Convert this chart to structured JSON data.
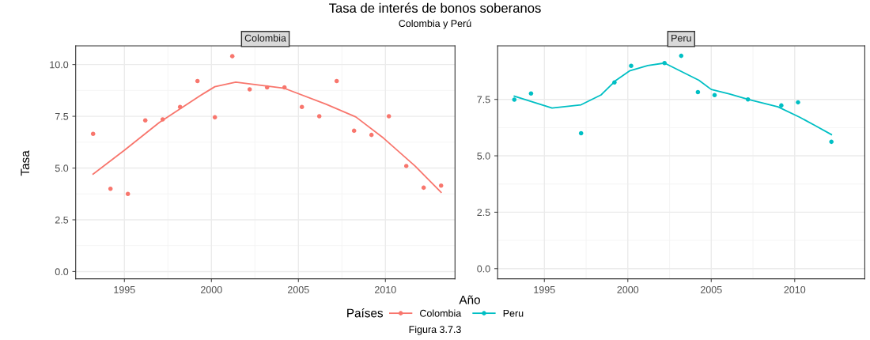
{
  "chart_data": [
    {
      "type": "scatter",
      "title": "Colombia",
      "xlabel": "Año",
      "ylabel": "Tasa",
      "legend_title": "Países",
      "legend": "bottom",
      "grid": true,
      "marker": "circle",
      "annotations": [
        "Tasa de interés de bonos soberanos",
        "Colombia y Perú",
        "Figura 3.7.3"
      ],
      "xlim": [
        1992.2,
        2014.0
      ],
      "xticks": [
        1995,
        2000,
        2005,
        2010
      ],
      "ylim": [
        -0.35,
        10.9
      ],
      "yticks": [
        {
          "value": 0,
          "label": "0.0"
        },
        {
          "value": 2.5,
          "label": "2.5"
        },
        {
          "value": 5,
          "label": "5.0"
        },
        {
          "value": 7.5,
          "label": "7.5"
        },
        {
          "value": 10,
          "label": "10.0"
        }
      ],
      "series": [
        {
          "name": "Colombia",
          "color": "#f8766d",
          "x": [
            1993.2,
            1994.2,
            1995.2,
            1996.2,
            1997.2,
            1998.2,
            1999.2,
            2000.2,
            2001.2,
            2002.2,
            2003.2,
            2004.2,
            2005.2,
            2006.2,
            2007.2,
            2008.2,
            2009.2,
            2010.2,
            2011.2,
            2012.2,
            2013.2
          ],
          "values": [
            6.65,
            4.0,
            3.75,
            7.3,
            7.35,
            7.95,
            9.2,
            7.45,
            10.4,
            8.8,
            8.9,
            8.9,
            7.95,
            7.5,
            9.2,
            6.8,
            6.6,
            7.5,
            5.1,
            4.05,
            4.15
          ]
        },
        {
          "type": "line",
          "color": "#f8766d",
          "line_style": "solid",
          "marker": "none",
          "x": [
            1993.2,
            1995.0,
            1997.0,
            1999.3,
            2000.2,
            2001.4,
            2004.2,
            2006.6,
            2008.3,
            2009.9,
            2011.7,
            2013.2
          ],
          "values": [
            4.71,
            5.86,
            7.2,
            8.47,
            8.93,
            9.15,
            8.85,
            8.08,
            7.47,
            6.44,
            5.1,
            3.83
          ]
        }
      ]
    },
    {
      "type": "scatter",
      "title": "Peru",
      "grid": true,
      "marker": "circle",
      "xlim": [
        1992.2,
        2014.2
      ],
      "xticks": [
        1995,
        2000,
        2005,
        2010
      ],
      "ylim": [
        -0.45,
        9.87
      ],
      "yticks": [
        {
          "value": 0,
          "label": "0.0"
        },
        {
          "value": 2.5,
          "label": "2.5"
        },
        {
          "value": 5,
          "label": "5.0"
        },
        {
          "value": 7.5,
          "label": "7.5"
        }
      ],
      "series": [
        {
          "name": "Peru",
          "color": "#00bfc4",
          "x": [
            1993.2,
            1994.2,
            1997.2,
            1999.2,
            2000.2,
            2002.2,
            2003.2,
            2004.2,
            2005.2,
            2007.2,
            2009.2,
            2010.2,
            2012.2
          ],
          "values": [
            7.49,
            7.76,
            6.0,
            8.25,
            8.99,
            9.11,
            9.43,
            7.82,
            7.69,
            7.5,
            7.23,
            7.37,
            5.62
          ]
        },
        {
          "type": "line",
          "color": "#00bfc4",
          "line_style": "solid",
          "marker": "none",
          "x": [
            1993.2,
            1995.46,
            1997.2,
            1998.4,
            1999.3,
            2000.1,
            2001.2,
            2002.2,
            2004.26,
            2005.0,
            2006.1,
            2007.2,
            2009.0,
            2010.3,
            2011.2,
            2012.2
          ],
          "values": [
            7.64,
            7.12,
            7.26,
            7.7,
            8.35,
            8.76,
            9.0,
            9.11,
            8.35,
            7.94,
            7.74,
            7.5,
            7.17,
            6.71,
            6.35,
            5.94
          ]
        }
      ]
    }
  ]
}
